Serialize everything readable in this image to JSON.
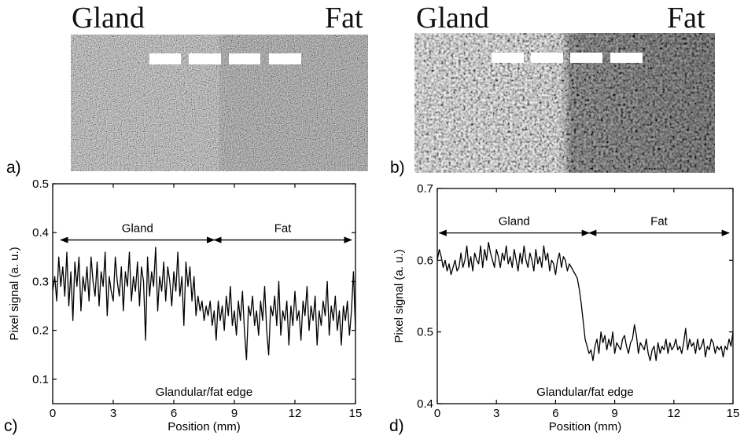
{
  "panels": {
    "a": {
      "letter": "a)",
      "left_label": "Gland",
      "right_label": "Fat"
    },
    "b": {
      "letter": "b)",
      "left_label": "Gland",
      "right_label": "Fat"
    },
    "c": {
      "letter": "c)"
    },
    "d": {
      "letter": "d)"
    }
  },
  "chart_data": [
    {
      "type": "line",
      "panel": "c",
      "xlabel": "Position (mm)",
      "ylabel": "Pixel signal (a. u.)",
      "xlim": [
        0,
        15
      ],
      "ylim": [
        0.05,
        0.5
      ],
      "xticks": [
        0,
        3,
        6,
        9,
        12,
        15
      ],
      "yticks": [
        0.1,
        0.2,
        0.3,
        0.4,
        0.5
      ],
      "ytick_labels": [
        "0.1",
        "0.2",
        "0.3",
        "0.4",
        "0.5"
      ],
      "grid": false,
      "annotations": {
        "left_region": "Gland",
        "right_region": "Fat",
        "arrow_y": 0.385,
        "left_arrow_x": [
          0.4,
          8.0
        ],
        "right_arrow_x": [
          8.0,
          14.8
        ],
        "bottom_text": "Glandular/fat edge"
      },
      "series": [
        {
          "x": [
            0.0,
            0.1,
            0.2,
            0.3,
            0.4,
            0.5,
            0.6,
            0.7,
            0.8,
            0.9,
            1.0,
            1.1,
            1.2,
            1.3,
            1.4,
            1.5,
            1.6,
            1.7,
            1.8,
            1.9,
            2.0,
            2.1,
            2.2,
            2.3,
            2.4,
            2.5,
            2.6,
            2.7,
            2.8,
            2.9,
            3.0,
            3.1,
            3.2,
            3.3,
            3.4,
            3.5,
            3.6,
            3.7,
            3.8,
            3.9,
            4.0,
            4.1,
            4.2,
            4.3,
            4.4,
            4.5,
            4.6,
            4.7,
            4.8,
            4.9,
            5.0,
            5.1,
            5.2,
            5.3,
            5.4,
            5.5,
            5.6,
            5.7,
            5.8,
            5.9,
            6.0,
            6.1,
            6.2,
            6.3,
            6.4,
            6.5,
            6.6,
            6.7,
            6.8,
            6.9,
            7.0,
            7.1,
            7.2,
            7.3,
            7.4,
            7.5,
            7.6,
            7.7,
            7.8,
            7.9,
            8.0,
            8.1,
            8.2,
            8.3,
            8.4,
            8.5,
            8.6,
            8.7,
            8.8,
            8.9,
            9.0,
            9.1,
            9.2,
            9.3,
            9.4,
            9.5,
            9.6,
            9.7,
            9.8,
            9.9,
            10.0,
            10.1,
            10.2,
            10.3,
            10.4,
            10.5,
            10.6,
            10.7,
            10.8,
            10.9,
            11.0,
            11.1,
            11.2,
            11.3,
            11.4,
            11.5,
            11.6,
            11.7,
            11.8,
            11.9,
            12.0,
            12.1,
            12.2,
            12.3,
            12.4,
            12.5,
            12.6,
            12.7,
            12.8,
            12.9,
            13.0,
            13.1,
            13.2,
            13.3,
            13.4,
            13.5,
            13.6,
            13.7,
            13.8,
            13.9,
            14.0,
            14.1,
            14.2,
            14.3,
            14.4,
            14.5,
            14.6,
            14.7,
            14.8,
            14.9,
            15.0
          ],
          "values": [
            0.28,
            0.31,
            0.26,
            0.35,
            0.29,
            0.33,
            0.27,
            0.36,
            0.25,
            0.32,
            0.22,
            0.34,
            0.29,
            0.35,
            0.24,
            0.31,
            0.28,
            0.33,
            0.26,
            0.35,
            0.3,
            0.27,
            0.34,
            0.25,
            0.32,
            0.29,
            0.36,
            0.23,
            0.31,
            0.28,
            0.26,
            0.35,
            0.3,
            0.27,
            0.33,
            0.24,
            0.32,
            0.29,
            0.36,
            0.26,
            0.31,
            0.28,
            0.34,
            0.25,
            0.33,
            0.3,
            0.18,
            0.35,
            0.27,
            0.32,
            0.29,
            0.37,
            0.24,
            0.31,
            0.28,
            0.34,
            0.26,
            0.33,
            0.3,
            0.25,
            0.32,
            0.28,
            0.36,
            0.27,
            0.31,
            0.21,
            0.34,
            0.29,
            0.33,
            0.26,
            0.31,
            0.23,
            0.27,
            0.24,
            0.26,
            0.22,
            0.25,
            0.23,
            0.26,
            0.21,
            0.24,
            0.18,
            0.26,
            0.22,
            0.25,
            0.2,
            0.27,
            0.23,
            0.29,
            0.21,
            0.24,
            0.19,
            0.26,
            0.22,
            0.28,
            0.2,
            0.14,
            0.25,
            0.23,
            0.27,
            0.21,
            0.24,
            0.19,
            0.26,
            0.22,
            0.29,
            0.2,
            0.15,
            0.25,
            0.23,
            0.27,
            0.21,
            0.3,
            0.19,
            0.24,
            0.22,
            0.26,
            0.17,
            0.25,
            0.21,
            0.28,
            0.22,
            0.24,
            0.18,
            0.26,
            0.23,
            0.29,
            0.2,
            0.25,
            0.22,
            0.27,
            0.17,
            0.24,
            0.21,
            0.26,
            0.23,
            0.3,
            0.19,
            0.25,
            0.22,
            0.27,
            0.2,
            0.24,
            0.17,
            0.25,
            0.22,
            0.26,
            0.19,
            0.24,
            0.32,
            0.2
          ]
        }
      ]
    },
    {
      "type": "line",
      "panel": "d",
      "xlabel": "Position (mm)",
      "ylabel": "Pixel signal (a. u.)",
      "xlim": [
        0,
        15
      ],
      "ylim": [
        0.4,
        0.7
      ],
      "xticks": [
        0,
        3,
        6,
        9,
        12,
        15
      ],
      "yticks": [
        0.4,
        0.5,
        0.6,
        0.7
      ],
      "ytick_labels": [
        "0.4",
        "0.5",
        "0.6",
        "0.7"
      ],
      "grid": false,
      "annotations": {
        "left_region": "Gland",
        "right_region": "Fat",
        "arrow_y": 0.638,
        "left_arrow_x": [
          0.1,
          7.7
        ],
        "right_arrow_x": [
          7.7,
          14.8
        ],
        "bottom_text": "Glandular/fat edge"
      },
      "series": [
        {
          "x": [
            0.0,
            0.1,
            0.2,
            0.3,
            0.4,
            0.5,
            0.6,
            0.7,
            0.8,
            0.9,
            1.0,
            1.1,
            1.2,
            1.3,
            1.4,
            1.5,
            1.6,
            1.7,
            1.8,
            1.9,
            2.0,
            2.1,
            2.2,
            2.3,
            2.4,
            2.5,
            2.6,
            2.7,
            2.8,
            2.9,
            3.0,
            3.1,
            3.2,
            3.3,
            3.4,
            3.5,
            3.6,
            3.7,
            3.8,
            3.9,
            4.0,
            4.1,
            4.2,
            4.3,
            4.4,
            4.5,
            4.6,
            4.7,
            4.8,
            4.9,
            5.0,
            5.1,
            5.2,
            5.3,
            5.4,
            5.5,
            5.6,
            5.7,
            5.8,
            5.9,
            6.0,
            6.1,
            6.2,
            6.3,
            6.4,
            6.5,
            6.6,
            6.7,
            6.8,
            6.9,
            7.0,
            7.1,
            7.2,
            7.3,
            7.4,
            7.5,
            7.6,
            7.7,
            7.8,
            7.9,
            8.0,
            8.1,
            8.2,
            8.3,
            8.4,
            8.5,
            8.6,
            8.7,
            8.8,
            8.9,
            9.0,
            9.1,
            9.2,
            9.3,
            9.4,
            9.5,
            9.6,
            9.7,
            9.8,
            9.9,
            10.0,
            10.1,
            10.2,
            10.3,
            10.4,
            10.5,
            10.6,
            10.7,
            10.8,
            10.9,
            11.0,
            11.1,
            11.2,
            11.3,
            11.4,
            11.5,
            11.6,
            11.7,
            11.8,
            11.9,
            12.0,
            12.1,
            12.2,
            12.3,
            12.4,
            12.5,
            12.6,
            12.7,
            12.8,
            12.9,
            13.0,
            13.1,
            13.2,
            13.3,
            13.4,
            13.5,
            13.6,
            13.7,
            13.8,
            13.9,
            14.0,
            14.1,
            14.2,
            14.3,
            14.4,
            14.5,
            14.6,
            14.7,
            14.8,
            14.9,
            15.0
          ],
          "values": [
            0.6,
            0.615,
            0.605,
            0.59,
            0.6,
            0.585,
            0.595,
            0.58,
            0.59,
            0.6,
            0.585,
            0.59,
            0.61,
            0.59,
            0.6,
            0.62,
            0.59,
            0.605,
            0.585,
            0.61,
            0.6,
            0.595,
            0.62,
            0.59,
            0.615,
            0.6,
            0.625,
            0.61,
            0.6,
            0.59,
            0.615,
            0.605,
            0.59,
            0.61,
            0.6,
            0.62,
            0.595,
            0.605,
            0.59,
            0.615,
            0.6,
            0.585,
            0.61,
            0.595,
            0.62,
            0.6,
            0.59,
            0.61,
            0.6,
            0.585,
            0.615,
            0.595,
            0.605,
            0.59,
            0.62,
            0.6,
            0.61,
            0.585,
            0.6,
            0.595,
            0.58,
            0.6,
            0.61,
            0.59,
            0.605,
            0.6,
            0.585,
            0.595,
            0.59,
            0.585,
            0.58,
            0.575,
            0.56,
            0.54,
            0.515,
            0.49,
            0.48,
            0.47,
            0.475,
            0.46,
            0.48,
            0.49,
            0.47,
            0.5,
            0.485,
            0.495,
            0.475,
            0.49,
            0.48,
            0.5,
            0.47,
            0.485,
            0.48,
            0.475,
            0.49,
            0.495,
            0.48,
            0.47,
            0.485,
            0.49,
            0.51,
            0.495,
            0.47,
            0.485,
            0.48,
            0.475,
            0.49,
            0.47,
            0.46,
            0.475,
            0.48,
            0.46,
            0.485,
            0.47,
            0.48,
            0.475,
            0.49,
            0.47,
            0.485,
            0.475,
            0.48,
            0.49,
            0.475,
            0.48,
            0.47,
            0.485,
            0.505,
            0.475,
            0.49,
            0.48,
            0.485,
            0.47,
            0.49,
            0.475,
            0.48,
            0.49,
            0.465,
            0.48,
            0.475,
            0.49,
            0.485,
            0.47,
            0.48,
            0.475,
            0.48,
            0.465,
            0.48,
            0.475,
            0.49,
            0.48,
            0.5
          ]
        }
      ]
    }
  ]
}
